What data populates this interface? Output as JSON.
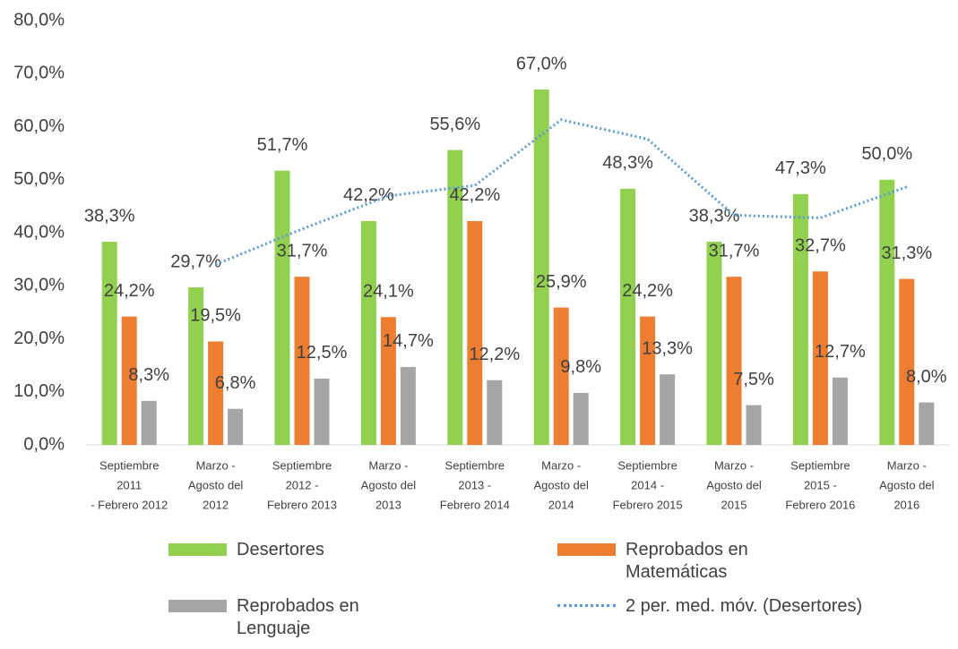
{
  "chart_data": {
    "type": "bar",
    "categories": [
      [
        "Septiembre",
        "2011",
        "- Febrero 2012"
      ],
      [
        "Marzo -",
        "Agosto del",
        "2012"
      ],
      [
        "Septiembre",
        "2012 -",
        "Febrero 2013"
      ],
      [
        "Marzo -",
        "Agosto del",
        "2013"
      ],
      [
        "Septiembre",
        "2013 -",
        "Febrero 2014"
      ],
      [
        "Marzo -",
        "Agosto del",
        "2014"
      ],
      [
        "Septiembre",
        "2014 -",
        "Febrero 2015"
      ],
      [
        "Marzo -",
        "Agosto del",
        "2015"
      ],
      [
        "Septiembre",
        "2015 -",
        "Febrero 2016"
      ],
      [
        "Marzo -",
        "Agosto del",
        "2016"
      ]
    ],
    "series": [
      {
        "name": "Desertores",
        "color": "#92d050",
        "values": [
          38.3,
          29.7,
          51.7,
          42.2,
          55.6,
          67.0,
          48.3,
          38.3,
          47.3,
          50.0
        ],
        "value_labels": [
          "38,3%",
          "29,7%",
          "51,7%",
          "42,2%",
          "55,6%",
          "67,0%",
          "48,3%",
          "38,3%",
          "47,3%",
          "50,0%"
        ]
      },
      {
        "name": "Reprobados en Matemáticas",
        "color": "#ed7d31",
        "values": [
          24.2,
          19.5,
          31.7,
          24.1,
          42.2,
          25.9,
          24.2,
          31.7,
          32.7,
          31.3
        ],
        "value_labels": [
          "24,2%",
          "19,5%",
          "31,7%",
          "24,1%",
          "42,2%",
          "25,9%",
          "24,2%",
          "31,7%",
          "32,7%",
          "31,3%"
        ]
      },
      {
        "name": "Reprobados en Lenguaje",
        "color": "#a5a5a5",
        "values": [
          8.3,
          6.8,
          12.5,
          14.7,
          12.2,
          9.8,
          13.3,
          7.5,
          12.7,
          8.0
        ],
        "value_labels": [
          "8,3%",
          "6,8%",
          "12,5%",
          "14,7%",
          "12,2%",
          "9,8%",
          "13,3%",
          "7,5%",
          "12,7%",
          "8,0%"
        ]
      },
      {
        "name": "2 per. med. móv. (Desertores)",
        "type": "line",
        "color": "#5b9bd5",
        "values": [
          null,
          34.0,
          40.7,
          46.95,
          48.9,
          61.3,
          57.65,
          43.3,
          42.8,
          48.65
        ]
      }
    ],
    "ylim": [
      0,
      80
    ],
    "yticks": [
      {
        "value": 0,
        "label": "0,0%"
      },
      {
        "value": 10,
        "label": "10,0%"
      },
      {
        "value": 20,
        "label": "20,0%"
      },
      {
        "value": 30,
        "label": "30,0%"
      },
      {
        "value": 40,
        "label": "40,0%"
      },
      {
        "value": 50,
        "label": "50,0%"
      },
      {
        "value": 60,
        "label": "60,0%"
      },
      {
        "value": 70,
        "label": "70,0%"
      },
      {
        "value": 80,
        "label": "80,0%"
      }
    ],
    "grid": false
  }
}
